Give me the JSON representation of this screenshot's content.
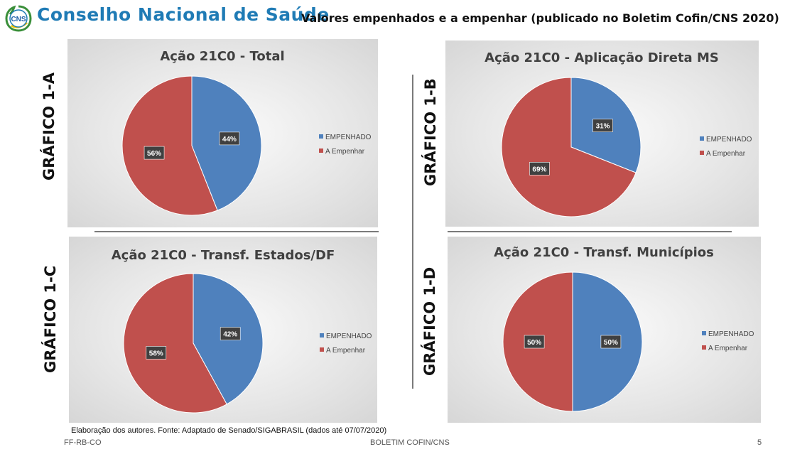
{
  "header": {
    "logo_text": "CNS",
    "org_name": "Conselho Nacional de Saúde",
    "subtitle": "Valores empenhados e a empenhar (publicado no Boletim Cofin/CNS 2020)"
  },
  "colors": {
    "empenhado": "#4f81bd",
    "a_empenhar": "#c0504d"
  },
  "side_labels": {
    "a": "GRÁFICO 1-A",
    "b": "GRÁFICO 1-B",
    "c": "GRÁFICO 1-C",
    "d": "GRÁFICO 1-D"
  },
  "chart_data": [
    {
      "type": "pie",
      "title": "Ação 21C0 - Total",
      "categories": [
        "EMPENHADO",
        "A Empenhar"
      ],
      "values": [
        44,
        56
      ],
      "data_labels": [
        "44%",
        "56%"
      ],
      "legend": "right"
    },
    {
      "type": "pie",
      "title": "Ação 21C0 - Aplicação Direta MS",
      "categories": [
        "EMPENHADO",
        "A Empenhar"
      ],
      "values": [
        31,
        69
      ],
      "data_labels": [
        "31%",
        "69%"
      ],
      "legend": "right"
    },
    {
      "type": "pie",
      "title": "Ação 21C0 - Transf. Estados/DF",
      "categories": [
        "EMPENHADO",
        "A Empenhar"
      ],
      "values": [
        42,
        58
      ],
      "data_labels": [
        "42%",
        "58%"
      ],
      "legend": "right"
    },
    {
      "type": "pie",
      "title": "Ação 21C0 - Transf. Municípios",
      "categories": [
        "EMPENHADO",
        "A Empenhar"
      ],
      "values": [
        50,
        50
      ],
      "data_labels": [
        "50%",
        "50%"
      ],
      "legend": "right"
    }
  ],
  "footer": {
    "source_note": "Elaboração dos autores. Fonte: Adaptado de Senado/SIGABRASIL (dados até 07/07/2020)",
    "left": "FF-RB-CO",
    "center": "BOLETIM COFIN/CNS",
    "page_number": "5"
  }
}
